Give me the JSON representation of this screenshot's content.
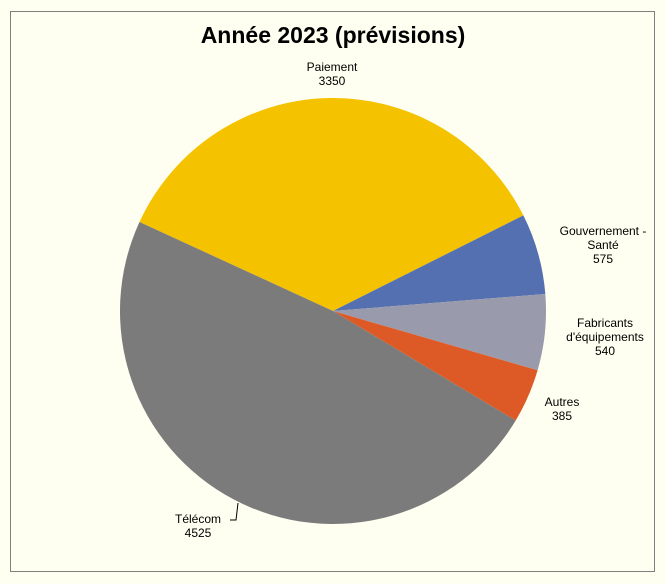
{
  "chart_data": {
    "type": "pie",
    "title": "Année 2023 (prévisions)",
    "categories": [
      "Paiement",
      "Gouvernement - Santé",
      "Fabricants d'équipements",
      "Autres",
      "Télécom"
    ],
    "values": [
      3350,
      575,
      540,
      385,
      4525
    ],
    "colors": [
      "#f5c200",
      "#5470b0",
      "#9a9aad",
      "#dd5a26",
      "#7b7b7b"
    ],
    "data_labels": "category name and value",
    "legend": "none"
  },
  "labels": {
    "paiement": {
      "name": "Paiement",
      "value": "3350"
    },
    "gouv": {
      "name1": "Gouvernement -",
      "name2": "Santé",
      "value": "575"
    },
    "fab": {
      "name1": "Fabricants",
      "name2": "d'équipements",
      "value": "540"
    },
    "autres": {
      "name": "Autres",
      "value": "385"
    },
    "telecom": {
      "name": "Télécom",
      "value": "4525"
    }
  },
  "colors": {
    "background": "#fefff0",
    "frame": "#7f7f7f"
  }
}
